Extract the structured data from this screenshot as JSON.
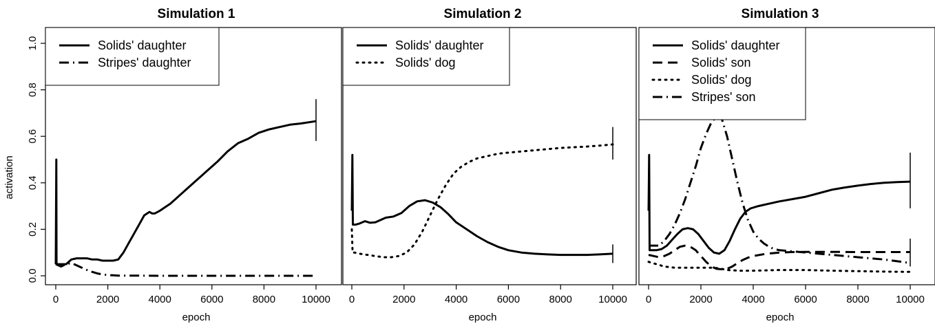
{
  "chart_data": [
    {
      "type": "line",
      "title": "Simulation 1",
      "xlabel": "epoch",
      "ylabel": "activation",
      "xlim": [
        0,
        10000
      ],
      "ylim": [
        0,
        1.0
      ],
      "xticks": [
        "0",
        "2000",
        "4000",
        "6000",
        "8000",
        "10000"
      ],
      "yticks": [
        "0.0",
        "0.2",
        "0.4",
        "0.6",
        "0.8",
        "1.0"
      ],
      "legend_position": "top-left",
      "series": [
        {
          "name": "Solids' daughter",
          "style": "solid",
          "x": [
            0,
            20,
            30,
            60,
            200,
            400,
            600,
            800,
            1000,
            1200,
            1400,
            1600,
            1800,
            2000,
            2200,
            2400,
            2600,
            2800,
            3000,
            3200,
            3400,
            3600,
            3700,
            3800,
            4000,
            4200,
            4400,
            4600,
            4800,
            5000,
            5400,
            5800,
            6200,
            6600,
            7000,
            7400,
            7800,
            8200,
            8600,
            9000,
            9400,
            10000
          ],
          "y": [
            0.05,
            0.5,
            0.05,
            0.05,
            0.05,
            0.05,
            0.07,
            0.075,
            0.075,
            0.075,
            0.07,
            0.07,
            0.065,
            0.065,
            0.065,
            0.07,
            0.1,
            0.14,
            0.18,
            0.22,
            0.26,
            0.275,
            0.268,
            0.268,
            0.28,
            0.295,
            0.31,
            0.33,
            0.35,
            0.37,
            0.41,
            0.45,
            0.49,
            0.535,
            0.57,
            0.59,
            0.615,
            0.63,
            0.64,
            0.65,
            0.655,
            0.665
          ],
          "end_error": [
            0.58,
            0.76
          ]
        },
        {
          "name": "Stripes' daughter",
          "style": "dashdot",
          "x": [
            0,
            100,
            200,
            400,
            600,
            800,
            1000,
            1200,
            1400,
            1600,
            1800,
            2000,
            2200,
            2400,
            3000,
            4000,
            6000,
            8000,
            10000
          ],
          "y": [
            0.05,
            0.045,
            0.04,
            0.05,
            0.055,
            0.045,
            0.035,
            0.025,
            0.017,
            0.01,
            0.006,
            0.003,
            0.002,
            0.001,
            0.001,
            0.0,
            0.0,
            0.0,
            0.0
          ]
        }
      ]
    },
    {
      "type": "line",
      "title": "Simulation 2",
      "xlabel": "epoch",
      "ylabel": "",
      "xlim": [
        0,
        10000
      ],
      "ylim": [
        0,
        1.0
      ],
      "xticks": [
        "0",
        "2000",
        "4000",
        "6000",
        "8000",
        "10000"
      ],
      "yticks": [],
      "legend_position": "top-left",
      "series": [
        {
          "name": "Solids' daughter",
          "style": "solid",
          "x": [
            0,
            20,
            40,
            80,
            150,
            300,
            500,
            700,
            900,
            1100,
            1300,
            1600,
            1900,
            2200,
            2500,
            2800,
            3100,
            3400,
            3700,
            4000,
            4400,
            4800,
            5200,
            5600,
            6000,
            6500,
            7000,
            7500,
            8000,
            8500,
            9000,
            9500,
            10000
          ],
          "y": [
            0.28,
            0.52,
            0.22,
            0.22,
            0.22,
            0.225,
            0.235,
            0.228,
            0.23,
            0.24,
            0.25,
            0.255,
            0.27,
            0.3,
            0.32,
            0.325,
            0.315,
            0.295,
            0.265,
            0.23,
            0.2,
            0.17,
            0.145,
            0.125,
            0.11,
            0.1,
            0.095,
            0.092,
            0.09,
            0.09,
            0.09,
            0.092,
            0.095
          ],
          "end_error": [
            0.055,
            0.135
          ]
        },
        {
          "name": "Solids' dog",
          "style": "dotted",
          "x": [
            0,
            30,
            100,
            300,
            600,
            900,
            1200,
            1500,
            1800,
            2100,
            2400,
            2700,
            3000,
            3300,
            3600,
            3900,
            4200,
            4500,
            4800,
            5200,
            5600,
            6000,
            6500,
            7000,
            7500,
            8000,
            8500,
            9000,
            9500,
            10000
          ],
          "y": [
            0.2,
            0.1,
            0.1,
            0.095,
            0.09,
            0.085,
            0.08,
            0.08,
            0.085,
            0.1,
            0.135,
            0.19,
            0.26,
            0.33,
            0.39,
            0.44,
            0.47,
            0.49,
            0.505,
            0.515,
            0.525,
            0.53,
            0.535,
            0.54,
            0.545,
            0.55,
            0.553,
            0.556,
            0.56,
            0.565
          ],
          "end_error": [
            0.5,
            0.64
          ]
        }
      ]
    },
    {
      "type": "line",
      "title": "Simulation 3",
      "xlabel": "epoch",
      "ylabel": "",
      "xlim": [
        0,
        10000
      ],
      "ylim": [
        0,
        1.0
      ],
      "xticks": [
        "0",
        "2000",
        "4000",
        "6000",
        "8000",
        "10000"
      ],
      "yticks": [],
      "legend_position": "top-left",
      "series": [
        {
          "name": "Solids' daughter",
          "style": "solid",
          "x": [
            0,
            20,
            40,
            100,
            300,
            500,
            700,
            900,
            1100,
            1300,
            1500,
            1700,
            1900,
            2100,
            2300,
            2500,
            2700,
            2900,
            3100,
            3300,
            3500,
            3700,
            3900,
            4200,
            4600,
            5000,
            5500,
            6000,
            6500,
            7000,
            7500,
            8000,
            8500,
            9000,
            9500,
            10000
          ],
          "y": [
            0.28,
            0.52,
            0.11,
            0.11,
            0.11,
            0.115,
            0.13,
            0.155,
            0.18,
            0.2,
            0.205,
            0.2,
            0.18,
            0.15,
            0.12,
            0.1,
            0.095,
            0.11,
            0.15,
            0.2,
            0.245,
            0.275,
            0.29,
            0.3,
            0.31,
            0.32,
            0.33,
            0.34,
            0.355,
            0.37,
            0.38,
            0.388,
            0.395,
            0.4,
            0.403,
            0.405
          ],
          "end_error": [
            0.29,
            0.53
          ]
        },
        {
          "name": "Solids' son",
          "style": "dashed",
          "x": [
            0,
            200,
            400,
            600,
            800,
            1000,
            1200,
            1400,
            1600,
            1800,
            2000,
            2200,
            2400,
            2600,
            2800,
            3000,
            3200,
            3400,
            3600,
            3800,
            4000,
            4500,
            5000,
            5500,
            6000,
            7000,
            8000,
            9000,
            10000
          ],
          "y": [
            0.09,
            0.085,
            0.08,
            0.085,
            0.095,
            0.11,
            0.125,
            0.13,
            0.125,
            0.11,
            0.085,
            0.06,
            0.04,
            0.03,
            0.028,
            0.03,
            0.04,
            0.055,
            0.068,
            0.078,
            0.085,
            0.095,
            0.1,
            0.102,
            0.103,
            0.103,
            0.102,
            0.102,
            0.102
          ],
          "end_error": [
            0.04,
            0.16
          ]
        },
        {
          "name": "Solids' dog",
          "style": "dotted",
          "x": [
            0,
            300,
            600,
            1000,
            1500,
            2000,
            2500,
            2800,
            3000,
            3500,
            4000,
            5000,
            6000,
            7000,
            8000,
            9000,
            10000
          ],
          "y": [
            0.06,
            0.05,
            0.04,
            0.035,
            0.035,
            0.035,
            0.035,
            0.03,
            0.025,
            0.022,
            0.022,
            0.025,
            0.025,
            0.022,
            0.02,
            0.018,
            0.017
          ]
        },
        {
          "name": "Stripes' son",
          "style": "dashdot",
          "x": [
            0,
            200,
            400,
            600,
            800,
            1000,
            1200,
            1400,
            1600,
            1800,
            2000,
            2200,
            2400,
            2600,
            2700,
            2800,
            3000,
            3200,
            3400,
            3600,
            3800,
            4000,
            4200,
            4400,
            4600,
            4800,
            5000,
            5500,
            6000,
            7000,
            8000,
            9000,
            10000
          ],
          "y": [
            0.13,
            0.13,
            0.13,
            0.15,
            0.18,
            0.22,
            0.27,
            0.33,
            0.4,
            0.47,
            0.55,
            0.61,
            0.66,
            0.685,
            0.69,
            0.675,
            0.6,
            0.5,
            0.4,
            0.31,
            0.24,
            0.19,
            0.16,
            0.14,
            0.125,
            0.115,
            0.11,
            0.105,
            0.1,
            0.09,
            0.08,
            0.07,
            0.055
          ]
        }
      ]
    }
  ]
}
